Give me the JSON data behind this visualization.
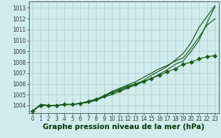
{
  "background_color": "#d0ecec",
  "grid_color": "#aacccc",
  "line_color": "#1a5c1a",
  "xlabel": "Graphe pression niveau de la mer (hPa)",
  "xlabel_fontsize": 7.5,
  "ylim": [
    1003.3,
    1013.6
  ],
  "xlim": [
    -0.5,
    23.5
  ],
  "yticks": [
    1004,
    1005,
    1006,
    1007,
    1008,
    1009,
    1010,
    1011,
    1012,
    1013
  ],
  "x_ticks": [
    0,
    1,
    2,
    3,
    4,
    5,
    6,
    7,
    8,
    9,
    10,
    11,
    12,
    13,
    14,
    15,
    16,
    17,
    18,
    19,
    20,
    21,
    22,
    23
  ],
  "series": [
    {
      "y": [
        1003.5,
        1004.1,
        1004.0,
        1004.0,
        1004.1,
        1004.1,
        1004.2,
        1004.3,
        1004.5,
        1004.8,
        1005.2,
        1005.5,
        1005.8,
        1006.0,
        1006.3,
        1006.8,
        1007.2,
        1007.6,
        1008.2,
        1008.8,
        1009.8,
        1011.2,
        1012.2,
        1013.2
      ],
      "marker": false,
      "linewidth": 0.9
    },
    {
      "y": [
        1003.5,
        1004.1,
        1004.0,
        1004.0,
        1004.1,
        1004.1,
        1004.2,
        1004.3,
        1004.5,
        1004.8,
        1005.0,
        1005.3,
        1005.6,
        1005.9,
        1006.2,
        1006.5,
        1006.9,
        1007.3,
        1007.8,
        1008.1,
        1009.0,
        1010.0,
        1011.6,
        1013.1
      ],
      "marker": false,
      "linewidth": 0.9
    },
    {
      "y": [
        1003.5,
        1004.0,
        1004.0,
        1004.0,
        1004.1,
        1004.1,
        1004.2,
        1004.4,
        1004.6,
        1004.9,
        1005.2,
        1005.4,
        1005.7,
        1006.0,
        1006.2,
        1006.5,
        1006.8,
        1007.1,
        1007.4,
        1007.8,
        1008.0,
        1008.3,
        1008.5,
        1008.6
      ],
      "marker": true,
      "linewidth": 0.9
    },
    {
      "y": [
        1003.5,
        1004.1,
        1004.0,
        1004.0,
        1004.1,
        1004.1,
        1004.2,
        1004.3,
        1004.5,
        1004.9,
        1005.3,
        1005.6,
        1005.9,
        1006.2,
        1006.6,
        1007.0,
        1007.4,
        1007.7,
        1008.1,
        1008.4,
        1009.3,
        1010.3,
        1011.4,
        1012.0
      ],
      "marker": false,
      "linewidth": 0.9
    }
  ],
  "marker_size": 3.0,
  "tick_fontsize": 5.5,
  "ylabel_color": "#003300",
  "tick_color": "#333333"
}
